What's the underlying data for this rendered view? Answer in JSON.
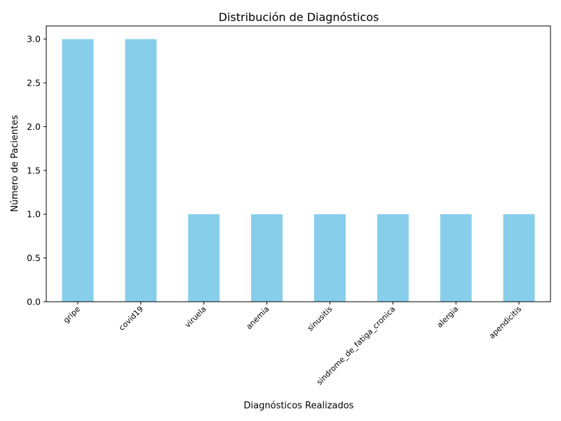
{
  "chart_data": {
    "type": "bar",
    "title": "Distribución de Diagnósticos",
    "xlabel": "Diagnósticos Realizados",
    "ylabel": "Número de Pacientes",
    "categories": [
      "gripe",
      "covid19",
      "viruela",
      "anemia",
      "sinusitis",
      "sindrome_de_fatiga_cronica",
      "alergia",
      "apendicitis"
    ],
    "values": [
      3,
      3,
      1,
      1,
      1,
      1,
      1,
      1
    ],
    "ylim": [
      0,
      3.15
    ],
    "yticks": [
      "0.0",
      "0.5",
      "1.0",
      "1.5",
      "2.0",
      "2.5",
      "3.0"
    ],
    "bar_color": "#87CEEB",
    "grid": false,
    "legend": "none"
  }
}
